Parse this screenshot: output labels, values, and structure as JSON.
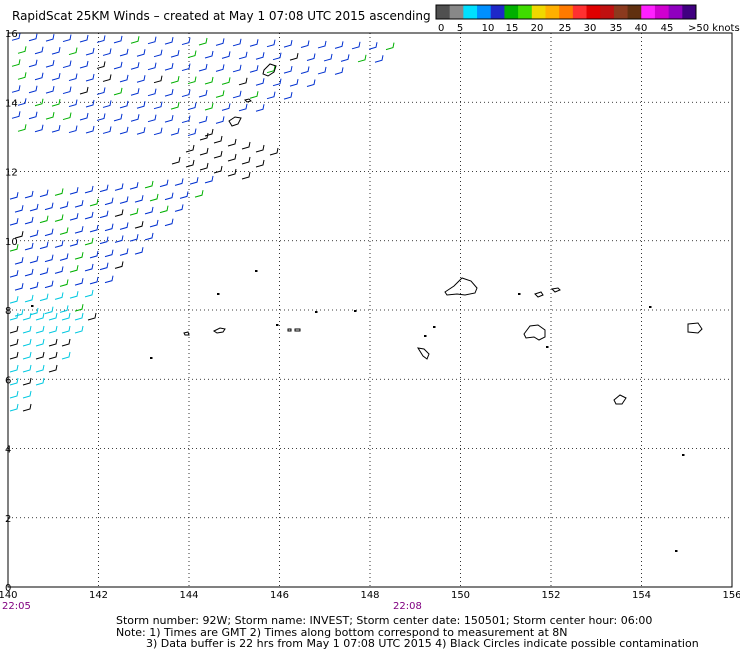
{
  "title": "RapidScat 25KM Winds – created at May  1 07:08 UTC 2015 ascending",
  "colorbar": {
    "labels": [
      "0",
      "5",
      "10",
      "15",
      "20",
      "25",
      "30",
      "35",
      "40",
      "45",
      ">50 knots"
    ],
    "colors": [
      "#505050",
      "#888888",
      "#00e0ff",
      "#0090ff",
      "#1e28c8",
      "#00b000",
      "#3fdc00",
      "#f0d800",
      "#ffb000",
      "#ff7a00",
      "#ff3030",
      "#e00000",
      "#c01010",
      "#8b3a1e",
      "#603010",
      "#ff20ff",
      "#d000d0",
      "#9000c0",
      "#400080"
    ]
  },
  "map": {
    "lon_ticks": [
      "140",
      "142",
      "144",
      "146",
      "148",
      "150",
      "152",
      "154",
      "156"
    ],
    "lat_ticks": [
      "0",
      "2",
      "4",
      "6",
      "8",
      "10",
      "12",
      "14",
      "16"
    ],
    "lon_range": [
      140,
      156
    ],
    "lat_range": [
      0,
      16
    ],
    "grid": true,
    "wind_barb_colors": {
      "calm": "#000000",
      "light": "#00c8e0",
      "moderate": "#0030d0",
      "fresh": "#00b000"
    }
  },
  "times": {
    "left": "22:05",
    "middle": "22:08"
  },
  "footer": {
    "line1": "Storm number: 92W;  Storm name: INVEST;  Storm center date: 150501;  Storm center hour: 06:00",
    "line2": "Note: 1) Times are GMT  2) Times along bottom correspond to measurement at 8N",
    "line3": "3) Data buffer is 22 hrs from May  1 07:08 UTC 2015   4) Black Circles indicate possible contamination"
  }
}
